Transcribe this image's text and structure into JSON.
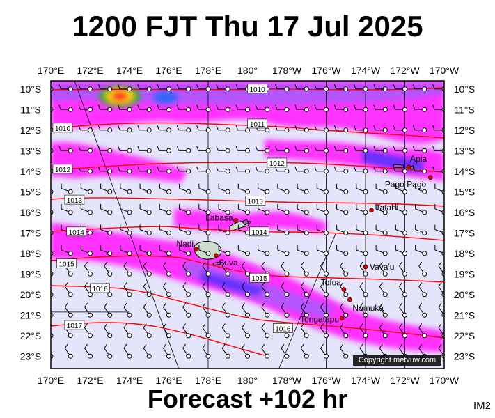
{
  "title": "1200 FJT Thu 17 Jul 2025",
  "forecast": "Forecast +102 hr",
  "image_tag": "IM2",
  "copyright": "Copyright metvuw.com",
  "lon_labels": [
    "170°E",
    "172°E",
    "174°E",
    "176°E",
    "178°E",
    "180°",
    "178°W",
    "176°W",
    "174°W",
    "172°W",
    "170°W"
  ],
  "lat_labels": [
    "10°S",
    "11°S",
    "12°S",
    "13°S",
    "14°S",
    "15°S",
    "16°S",
    "17°S",
    "18°S",
    "19°S",
    "20°S",
    "21°S",
    "22°S",
    "23°S"
  ],
  "places": [
    {
      "name": "Apia",
      "lon": -171.8,
      "lat": -13.8
    },
    {
      "name": "Pago Pago",
      "lon": -170.7,
      "lat": -14.3
    },
    {
      "name": "Tafahi",
      "lon": -173.7,
      "lat": -15.9
    },
    {
      "name": "Labasa",
      "lon": 179.4,
      "lat": -16.4
    },
    {
      "name": "Nadi",
      "lon": 177.4,
      "lat": -17.8
    },
    {
      "name": "Suva",
      "lon": 178.4,
      "lat": -18.1
    },
    {
      "name": "Vava'u",
      "lon": -174.0,
      "lat": -18.65
    },
    {
      "name": "Tofua",
      "lon": -175.1,
      "lat": -19.75
    },
    {
      "name": "Nomuka",
      "lon": -174.8,
      "lat": -20.25
    },
    {
      "name": "Tongatapu",
      "lon": -175.2,
      "lat": -21.15
    }
  ],
  "isobars": [
    {
      "label": "1010",
      "lon": 180.5,
      "lat": -10.0
    },
    {
      "label": "1010",
      "lon": 170.6,
      "lat": -11.9
    },
    {
      "label": "1011",
      "lon": 180.5,
      "lat": -11.7
    },
    {
      "label": "1012",
      "lon": 170.6,
      "lat": -13.9
    },
    {
      "label": "1012",
      "lon": 181.5,
      "lat": -13.6
    },
    {
      "label": "1013",
      "lon": 171.2,
      "lat": -15.4
    },
    {
      "label": "1013",
      "lon": 180.4,
      "lat": -15.45
    },
    {
      "label": "1014",
      "lon": 171.3,
      "lat": -16.95
    },
    {
      "label": "1014",
      "lon": 180.6,
      "lat": -16.95
    },
    {
      "label": "1015",
      "lon": 170.8,
      "lat": -18.5
    },
    {
      "label": "1015",
      "lon": 180.6,
      "lat": -19.2
    },
    {
      "label": "1016",
      "lon": 172.5,
      "lat": -19.7
    },
    {
      "label": "1016",
      "lon": 181.8,
      "lat": -21.65
    },
    {
      "label": "1017",
      "lon": 171.2,
      "lat": -21.5
    }
  ],
  "colors": {
    "ocean": "#e4e4fa",
    "rain_light": "#ff33ff",
    "rain_medium": "#b455ff",
    "rain_heavy": "#6633ff",
    "rain_extreme": "#ff2222",
    "isobar": "#ff0000",
    "land": "#ccddcc"
  }
}
